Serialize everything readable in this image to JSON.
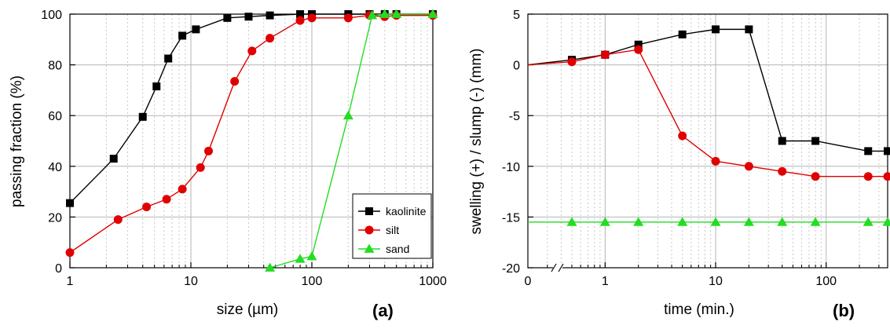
{
  "chart_data": [
    {
      "type": "line",
      "panel_label": "(a)",
      "xlabel": "size  (µm)",
      "ylabel": "passing fraction  (%)",
      "x_scale": "log",
      "xlim": [
        1,
        1000
      ],
      "ylim": [
        0,
        100
      ],
      "x_ticks": [
        1,
        10,
        100,
        1000
      ],
      "x_tick_labels": [
        "1",
        "10",
        "100",
        "1000"
      ],
      "y_ticks": [
        0,
        20,
        40,
        60,
        80,
        100
      ],
      "y_tick_labels": [
        "0",
        "20",
        "40",
        "60",
        "80",
        "100"
      ],
      "grid": true,
      "legend_position": "bottom-right",
      "series": [
        {
          "name": "kaolinite",
          "color": "#000000",
          "marker": "square",
          "x": [
            1,
            2.3,
            4,
            5.2,
            6.5,
            8.5,
            11,
            20,
            30,
            45,
            80,
            100,
            200,
            300,
            400,
            500,
            1000
          ],
          "y": [
            25.5,
            43,
            59.5,
            71.5,
            82.5,
            91.5,
            94,
            98.5,
            99,
            99.5,
            100,
            100,
            100,
            100,
            100,
            100,
            100
          ]
        },
        {
          "name": "silt",
          "color": "#e00000",
          "marker": "circle",
          "x": [
            1,
            2.5,
            4.3,
            6.3,
            8.5,
            12,
            14,
            23,
            32,
            45,
            80,
            100,
            200,
            300,
            400,
            500,
            1000
          ],
          "y": [
            6,
            19,
            24,
            27,
            31,
            39.5,
            46,
            73.5,
            85.5,
            90.5,
            97.5,
            98.5,
            98.5,
            99.5,
            99,
            99.5,
            99.5
          ]
        },
        {
          "name": "sand",
          "color": "#22dd22",
          "marker": "triangle",
          "x": [
            45,
            80,
            100,
            200,
            315,
            400,
            500,
            1000
          ],
          "y": [
            0,
            3.5,
            4.5,
            60,
            99.5,
            100,
            100,
            100
          ]
        }
      ]
    },
    {
      "type": "line",
      "panel_label": "(b)",
      "xlabel": "time  (min.)",
      "ylabel": "swelling (+) / slump (-)  (mm)",
      "x_scale": "log",
      "x_axis_break": true,
      "xlim": [
        0.2,
        360
      ],
      "ylim": [
        -20,
        5
      ],
      "x_ticks": [
        1,
        10,
        100
      ],
      "x_tick_labels": [
        "1",
        "10",
        "100"
      ],
      "x_zero_label": "0",
      "y_ticks": [
        -20,
        -15,
        -10,
        -5,
        0,
        5
      ],
      "y_tick_labels": [
        "-20",
        "-15",
        "-10",
        "-5",
        "0",
        "5"
      ],
      "grid": true,
      "series": [
        {
          "name": "kaolinite",
          "color": "#000000",
          "marker": "square",
          "x": [
            0,
            0.5,
            1,
            2,
            5,
            10,
            20,
            40,
            80,
            240,
            360
          ],
          "y": [
            0,
            0.5,
            1,
            2,
            3,
            3.5,
            3.5,
            -7.5,
            -7.5,
            -8.5,
            -8.5
          ]
        },
        {
          "name": "silt",
          "color": "#e00000",
          "marker": "circle",
          "x": [
            0,
            0.5,
            1,
            2,
            5,
            10,
            20,
            40,
            80,
            240,
            360
          ],
          "y": [
            0,
            0.3,
            1,
            1.5,
            -7,
            -9.5,
            -10,
            -10.5,
            -11,
            -11,
            -11
          ]
        },
        {
          "name": "sand",
          "color": "#22dd22",
          "marker": "triangle",
          "x": [
            0,
            0.5,
            1,
            2,
            5,
            10,
            20,
            40,
            80,
            240,
            360
          ],
          "y": [
            -15.5,
            -15.5,
            -15.5,
            -15.5,
            -15.5,
            -15.5,
            -15.5,
            -15.5,
            -15.5,
            -15.5,
            -15.5
          ]
        }
      ]
    }
  ]
}
